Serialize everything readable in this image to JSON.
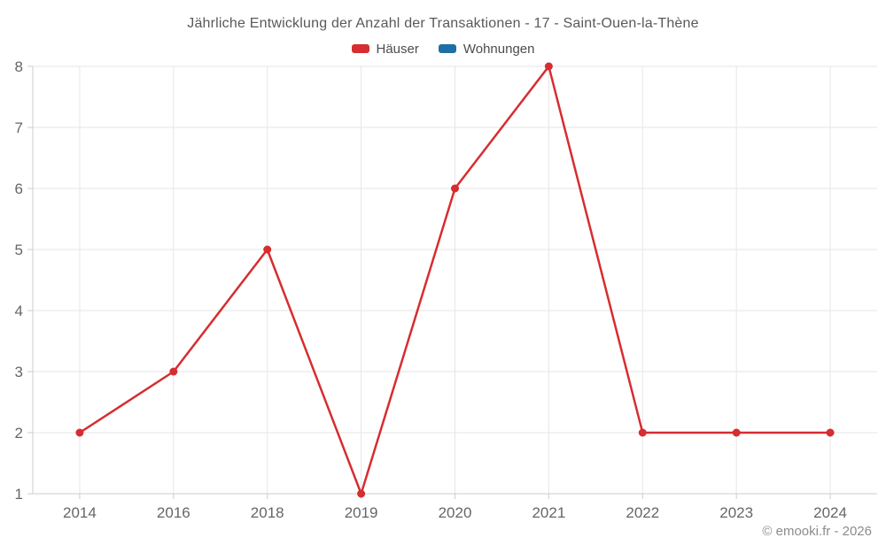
{
  "chart_data": {
    "type": "line",
    "title": "Jährliche Entwicklung der Anzahl der Transaktionen - 17 - Saint-Ouen-la-Thène",
    "categories": [
      "2014",
      "2016",
      "2018",
      "2019",
      "2020",
      "2021",
      "2022",
      "2023",
      "2024"
    ],
    "series": [
      {
        "name": "Häuser",
        "slug": "haeuser",
        "color": "#d62d30",
        "values": [
          2,
          3,
          5,
          1,
          6,
          8,
          2,
          2,
          2
        ]
      },
      {
        "name": "Wohnungen",
        "slug": "wohnungen",
        "color": "#1d6fa5",
        "values": []
      }
    ],
    "ylim": [
      1,
      8
    ],
    "yticks": [
      1,
      2,
      3,
      4,
      5,
      6,
      7,
      8
    ],
    "grid": true,
    "legend_position": "top"
  },
  "colors": {
    "background": "#ffffff",
    "grid": "#e6e6e6",
    "axis": "#cccccc",
    "tick_label": "#666666",
    "title": "#595959",
    "legend_label": "#4c4c4c",
    "footer": "#8c8c8c"
  },
  "footer": {
    "copyright": "© emooki.fr - 2026"
  }
}
